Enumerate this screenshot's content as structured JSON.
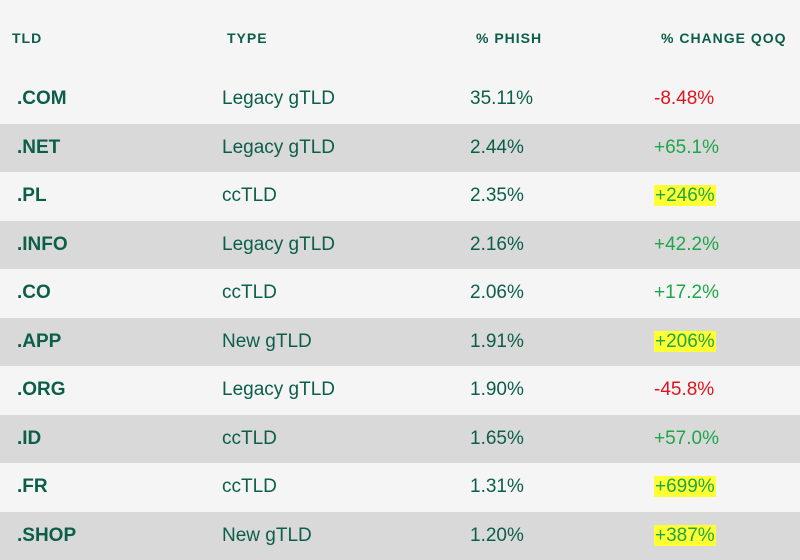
{
  "header": {
    "tld": "TLD",
    "type": "TYPE",
    "phish": "% PHISH",
    "change": "% CHANGE QOQ"
  },
  "colors": {
    "text_green": "#0b5e4a",
    "negative": "#e0141e",
    "positive": "#1fa64a",
    "highlight": "#ffff33",
    "alt_row": "#d9d9d9"
  },
  "rows": [
    {
      "tld": ".COM",
      "type": "Legacy gTLD",
      "phish": "35.11%",
      "change": "-8.48%",
      "trend": "negative",
      "highlighted": false
    },
    {
      "tld": ".NET",
      "type": "Legacy gTLD",
      "phish": "2.44%",
      "change": "+65.1%",
      "trend": "positive",
      "highlighted": false
    },
    {
      "tld": ".PL",
      "type": "ccTLD",
      "phish": "2.35%",
      "change": "+246%",
      "trend": "positive",
      "highlighted": true
    },
    {
      "tld": ".INFO",
      "type": "Legacy gTLD",
      "phish": "2.16%",
      "change": "+42.2%",
      "trend": "positive",
      "highlighted": false
    },
    {
      "tld": ".CO",
      "type": "ccTLD",
      "phish": "2.06%",
      "change": "+17.2%",
      "trend": "positive",
      "highlighted": false
    },
    {
      "tld": ".APP",
      "type": "New gTLD",
      "phish": "1.91%",
      "change": "+206%",
      "trend": "positive",
      "highlighted": true
    },
    {
      "tld": ".ORG",
      "type": "Legacy gTLD",
      "phish": "1.90%",
      "change": "-45.8%",
      "trend": "negative",
      "highlighted": false
    },
    {
      "tld": ".ID",
      "type": "ccTLD",
      "phish": "1.65%",
      "change": "+57.0%",
      "trend": "positive",
      "highlighted": false
    },
    {
      "tld": ".FR",
      "type": "ccTLD",
      "phish": "1.31%",
      "change": "+699%",
      "trend": "positive",
      "highlighted": true
    },
    {
      "tld": ".SHOP",
      "type": "New gTLD",
      "phish": "1.20%",
      "change": "+387%",
      "trend": "positive",
      "highlighted": true
    }
  ]
}
